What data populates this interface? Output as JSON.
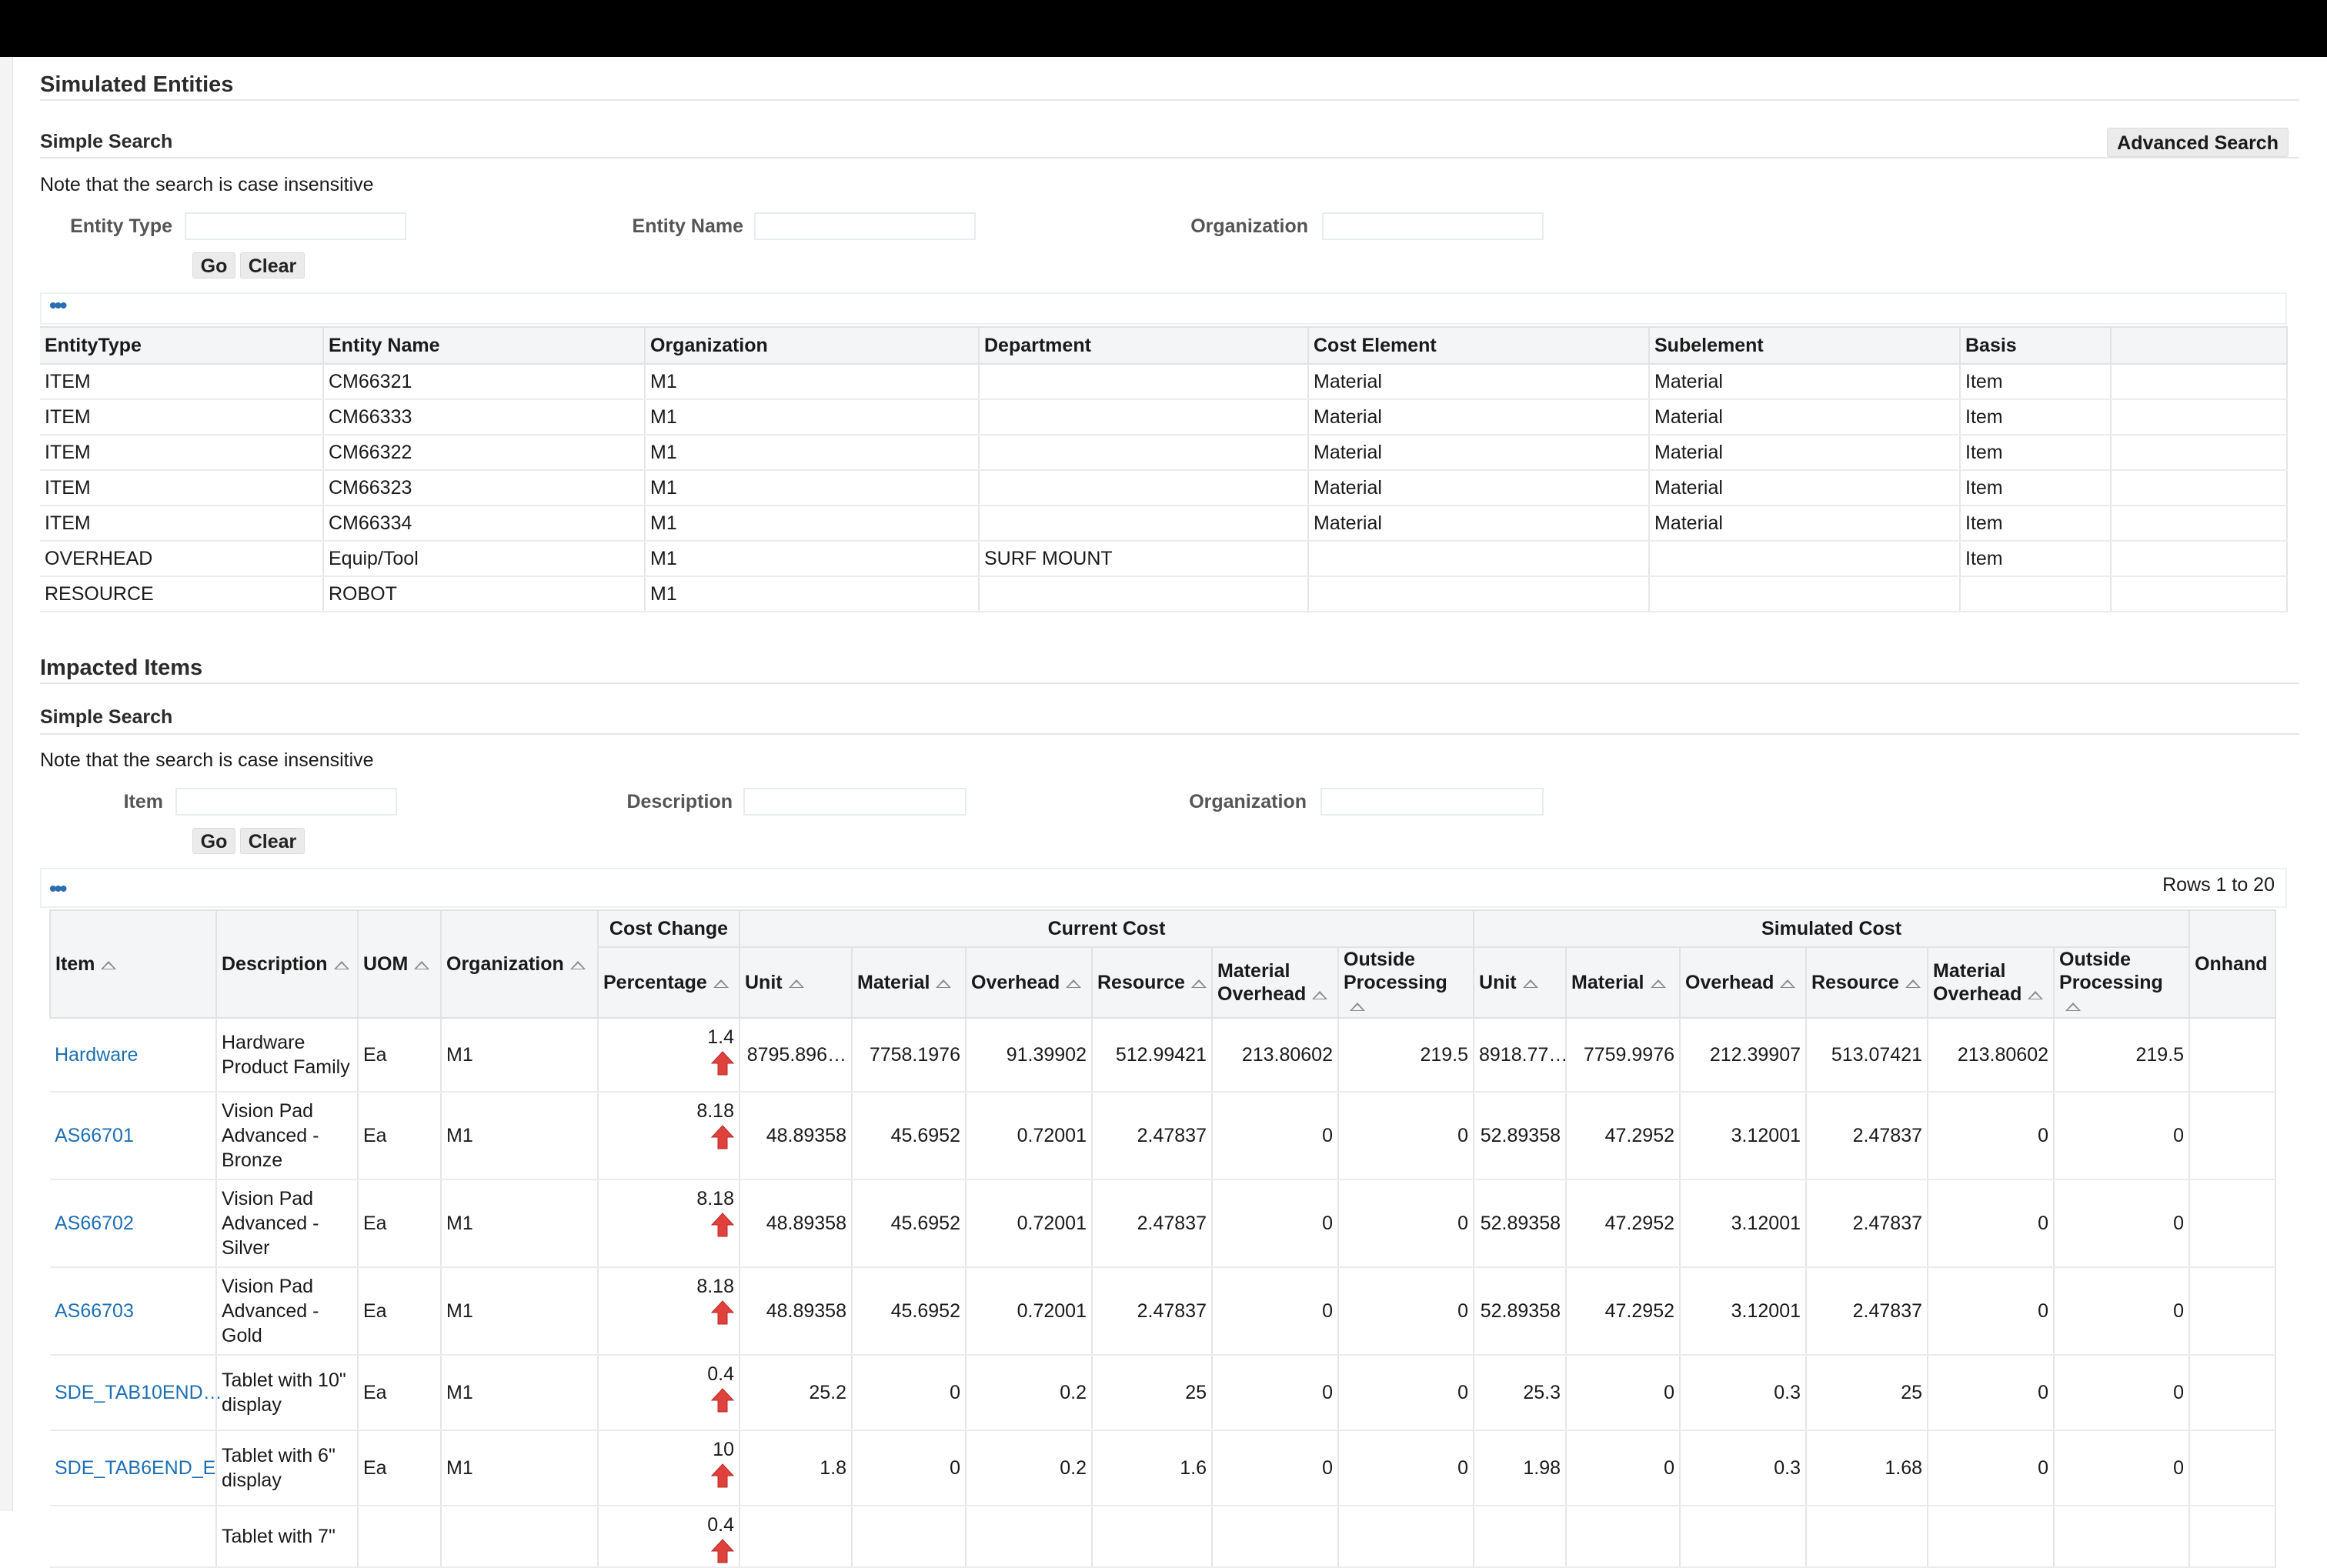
{
  "entities": {
    "title": "Simulated Entities",
    "search_title": "Simple Search",
    "advanced_search_label": "Advanced Search",
    "note": "Note that the search is case insensitive",
    "labels": {
      "entity_type": "Entity Type",
      "entity_name": "Entity Name",
      "organization": "Organization"
    },
    "go_label": "Go",
    "clear_label": "Clear",
    "columns": [
      "EntityType",
      "Entity Name",
      "Organization",
      "Department",
      "Cost Element",
      "Subelement",
      "Basis"
    ],
    "rows": [
      [
        "ITEM",
        "CM66321",
        "M1",
        "",
        "Material",
        "Material",
        "Item"
      ],
      [
        "ITEM",
        "CM66333",
        "M1",
        "",
        "Material",
        "Material",
        "Item"
      ],
      [
        "ITEM",
        "CM66322",
        "M1",
        "",
        "Material",
        "Material",
        "Item"
      ],
      [
        "ITEM",
        "CM66323",
        "M1",
        "",
        "Material",
        "Material",
        "Item"
      ],
      [
        "ITEM",
        "CM66334",
        "M1",
        "",
        "Material",
        "Material",
        "Item"
      ],
      [
        "OVERHEAD",
        "Equip/Tool",
        "M1",
        "SURF MOUNT",
        "",
        "",
        "Item"
      ],
      [
        "RESOURCE",
        "ROBOT",
        "M1",
        "",
        "",
        "",
        ""
      ]
    ]
  },
  "impacted": {
    "title": "Impacted Items",
    "search_title": "Simple Search",
    "note": "Note that the search is case insensitive",
    "labels": {
      "item": "Item",
      "description": "Description",
      "organization": "Organization"
    },
    "go_label": "Go",
    "clear_label": "Clear",
    "rows_info": "Rows 1 to 20",
    "group_headers": {
      "cost_change": "Cost Change",
      "current_cost": "Current Cost",
      "simulated_cost": "Simulated Cost"
    },
    "col_headers": {
      "item": "Item",
      "description": "Description",
      "uom": "UOM",
      "organization": "Organization",
      "percentage": "Percentage",
      "unit": "Unit",
      "material": "Material",
      "overhead": "Overhead",
      "resource": "Resource",
      "material_overhead": "Material Overhead",
      "outside_processing": "Outside Processing",
      "onhand": "Onhand"
    },
    "arrow_icon": "red-up-arrow-icon",
    "rows": [
      {
        "item": "Hardware",
        "description": "Hardware Product Family",
        "uom": "Ea",
        "org": "M1",
        "pct": "1.4",
        "cur": [
          "8795.896…",
          "7758.1976",
          "91.39902",
          "512.99421",
          "213.80602",
          "219.5"
        ],
        "sim": [
          "8918.77…",
          "7759.9976",
          "212.39907",
          "513.07421",
          "213.80602",
          "219.5"
        ]
      },
      {
        "item": "AS66701",
        "description": "Vision Pad Advanced - Bronze",
        "uom": "Ea",
        "org": "M1",
        "pct": "8.18",
        "cur": [
          "48.89358",
          "45.6952",
          "0.72001",
          "2.47837",
          "0",
          "0"
        ],
        "sim": [
          "52.89358",
          "47.2952",
          "3.12001",
          "2.47837",
          "0",
          "0"
        ]
      },
      {
        "item": "AS66702",
        "description": "Vision Pad Advanced - Silver",
        "uom": "Ea",
        "org": "M1",
        "pct": "8.18",
        "cur": [
          "48.89358",
          "45.6952",
          "0.72001",
          "2.47837",
          "0",
          "0"
        ],
        "sim": [
          "52.89358",
          "47.2952",
          "3.12001",
          "2.47837",
          "0",
          "0"
        ]
      },
      {
        "item": "AS66703",
        "description": "Vision Pad Advanced - Gold",
        "uom": "Ea",
        "org": "M1",
        "pct": "8.18",
        "cur": [
          "48.89358",
          "45.6952",
          "0.72001",
          "2.47837",
          "0",
          "0"
        ],
        "sim": [
          "52.89358",
          "47.2952",
          "3.12001",
          "2.47837",
          "0",
          "0"
        ]
      },
      {
        "item": "SDE_TAB10END…",
        "description": "Tablet with 10\" display",
        "uom": "Ea",
        "org": "M1",
        "pct": "0.4",
        "cur": [
          "25.2",
          "0",
          "0.2",
          "25",
          "0",
          "0"
        ],
        "sim": [
          "25.3",
          "0",
          "0.3",
          "25",
          "0",
          "0"
        ]
      },
      {
        "item": "SDE_TAB6END_E",
        "description": "Tablet with 6\" display",
        "uom": "Ea",
        "org": "M1",
        "pct": "10",
        "cur": [
          "1.8",
          "0",
          "0.2",
          "1.6",
          "0",
          "0"
        ],
        "sim": [
          "1.98",
          "0",
          "0.3",
          "1.68",
          "0",
          "0"
        ]
      },
      {
        "item": "",
        "description": "Tablet with 7\"",
        "uom": "",
        "org": "",
        "pct": "0.4",
        "cur": [
          "",
          "",
          "",
          "",
          "",
          ""
        ],
        "sim": [
          "",
          "",
          "",
          "",
          "",
          ""
        ]
      }
    ]
  }
}
